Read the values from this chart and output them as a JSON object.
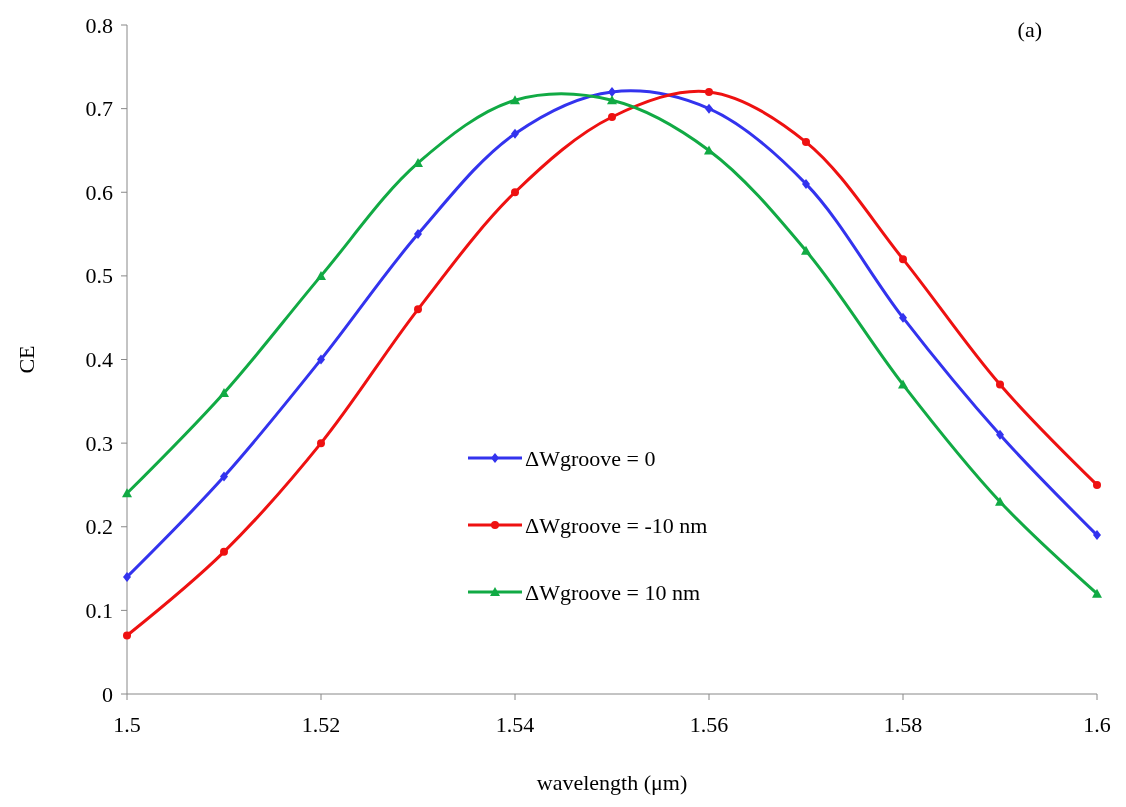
{
  "chart_data": {
    "type": "line",
    "xlabel": "wavelength (μm)",
    "ylabel": "CE",
    "annotations": [
      "(a)"
    ],
    "x": [
      1.5,
      1.51,
      1.52,
      1.53,
      1.54,
      1.55,
      1.56,
      1.57,
      1.58,
      1.59,
      1.6
    ],
    "xlim": [
      1.5,
      1.6
    ],
    "xticks": [
      1.5,
      1.52,
      1.54,
      1.56,
      1.58,
      1.6
    ],
    "ylim": [
      0,
      0.8
    ],
    "yticks": [
      0,
      0.1,
      0.2,
      0.3,
      0.4,
      0.5,
      0.6,
      0.7,
      0.8
    ],
    "grid": false,
    "legend": "bottom",
    "line_style": "solid",
    "series": [
      {
        "name": "ΔWgroove = 0",
        "color": "#3333ee",
        "marker": "diamond",
        "values": [
          0.14,
          0.26,
          0.4,
          0.55,
          0.67,
          0.72,
          0.7,
          0.61,
          0.45,
          0.31,
          0.19
        ]
      },
      {
        "name": "ΔWgroove = -10 nm",
        "color": "#ee1111",
        "marker": "circle",
        "values": [
          0.07,
          0.17,
          0.3,
          0.46,
          0.6,
          0.69,
          0.72,
          0.66,
          0.52,
          0.37,
          0.25
        ]
      },
      {
        "name": "ΔWgroove = 10 nm",
        "color": "#11aa44",
        "marker": "triangle",
        "values": [
          0.24,
          0.36,
          0.5,
          0.635,
          0.71,
          0.71,
          0.65,
          0.53,
          0.37,
          0.23,
          0.12
        ]
      }
    ]
  }
}
